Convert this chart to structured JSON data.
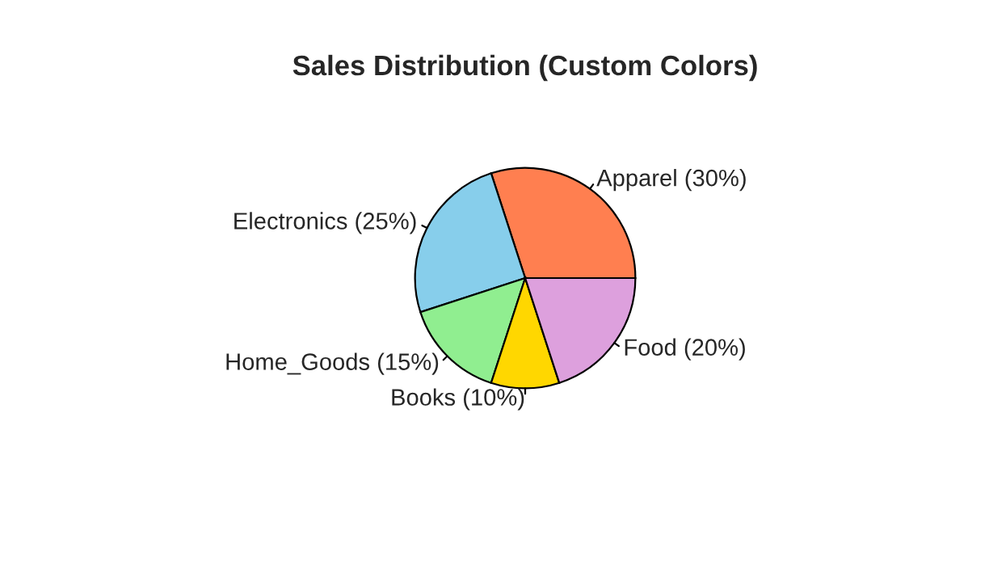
{
  "chart_data": {
    "type": "pie",
    "title": "Sales Distribution (Custom Colors)",
    "categories": [
      "Apparel (30%)",
      "Electronics (25%)",
      "Home_Goods (15%)",
      "Books (10%)",
      "Food (20%)"
    ],
    "values": [
      30,
      25,
      15,
      10,
      20
    ],
    "colors": [
      "#ff7f50",
      "#87ceeb",
      "#90ee90",
      "#ffd700",
      "#dda0dd"
    ]
  }
}
